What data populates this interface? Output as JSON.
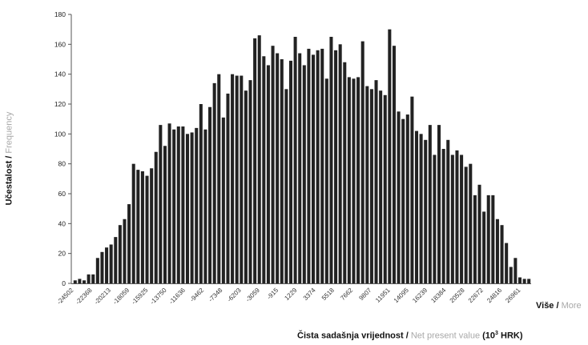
{
  "chart_data": {
    "type": "bar",
    "ylabel_hr": "Učestalost",
    "ylabel_sep": " / ",
    "ylabel_en": "Frequency",
    "xlabel_hr": "Čista sadašnja vrijednost",
    "xlabel_sep": " / ",
    "xlabel_en": "Net present value",
    "xlabel_unit_pre": " (10",
    "xlabel_unit_sup": "3",
    "xlabel_unit_post": " HRK)",
    "more_hr": "Više",
    "more_sep": " / ",
    "more_en": "More",
    "ylim": [
      0,
      180
    ],
    "yticks": [
      0,
      20,
      40,
      60,
      80,
      100,
      120,
      140,
      160,
      180
    ],
    "xtick_labels": [
      "-24502",
      "-22368",
      "-20213",
      "-18059",
      "-15925",
      "-13750",
      "-11636",
      "-9462",
      "-7348",
      "-6203",
      "-3059",
      "-915",
      "1229",
      "3374",
      "5518",
      "7662",
      "9807",
      "11951",
      "14095",
      "16239",
      "18384",
      "20528",
      "22672",
      "24816",
      "26961"
    ],
    "grid": false,
    "bar_color": "#222222",
    "values": [
      2,
      3,
      2,
      6,
      6,
      17,
      21,
      24,
      26,
      31,
      39,
      43,
      53,
      80,
      76,
      75,
      72,
      77,
      88,
      106,
      92,
      107,
      103,
      105,
      105,
      100,
      101,
      104,
      120,
      103,
      118,
      134,
      140,
      111,
      127,
      140,
      139,
      139,
      129,
      136,
      164,
      166,
      152,
      146,
      159,
      154,
      150,
      130,
      149,
      165,
      154,
      146,
      157,
      153,
      156,
      157,
      137,
      165,
      156,
      160,
      148,
      138,
      137,
      138,
      162,
      132,
      130,
      136,
      129,
      126,
      170,
      159,
      115,
      110,
      113,
      125,
      102,
      100,
      96,
      106,
      86,
      106,
      90,
      96,
      86,
      89,
      86,
      78,
      80,
      59,
      66,
      48,
      59,
      59,
      43,
      39,
      27,
      11,
      17,
      4,
      3,
      3
    ]
  }
}
